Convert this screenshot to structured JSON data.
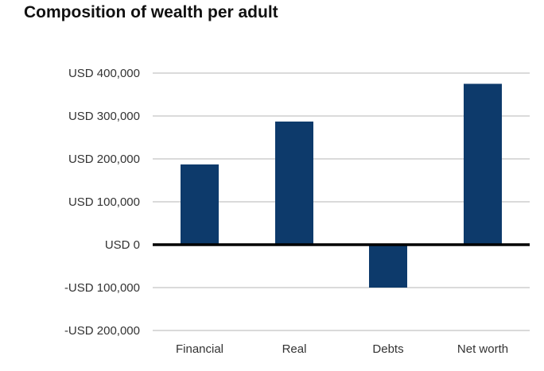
{
  "chart_data": {
    "type": "bar",
    "title": "Composition of wealth per adult",
    "categories": [
      "Financial",
      "Real",
      "Debts",
      "Net worth"
    ],
    "values": [
      187000,
      287000,
      -100000,
      375000
    ],
    "ylim": [
      -200000,
      400000
    ],
    "yticks": [
      {
        "value": 400000,
        "label": "USD 400,000"
      },
      {
        "value": 300000,
        "label": "USD 300,000"
      },
      {
        "value": 200000,
        "label": "USD 200,000"
      },
      {
        "value": 100000,
        "label": "USD 100,000"
      },
      {
        "value": 0,
        "label": "USD 0"
      },
      {
        "value": -100000,
        "label": "-USD 100,000"
      },
      {
        "value": -200000,
        "label": "-USD 200,000"
      }
    ],
    "xlabel": "",
    "ylabel": "",
    "grid": true,
    "bar_color": "#0d3a6b",
    "zero_line_color": "#000000",
    "grid_color": "#b5b5b5"
  }
}
